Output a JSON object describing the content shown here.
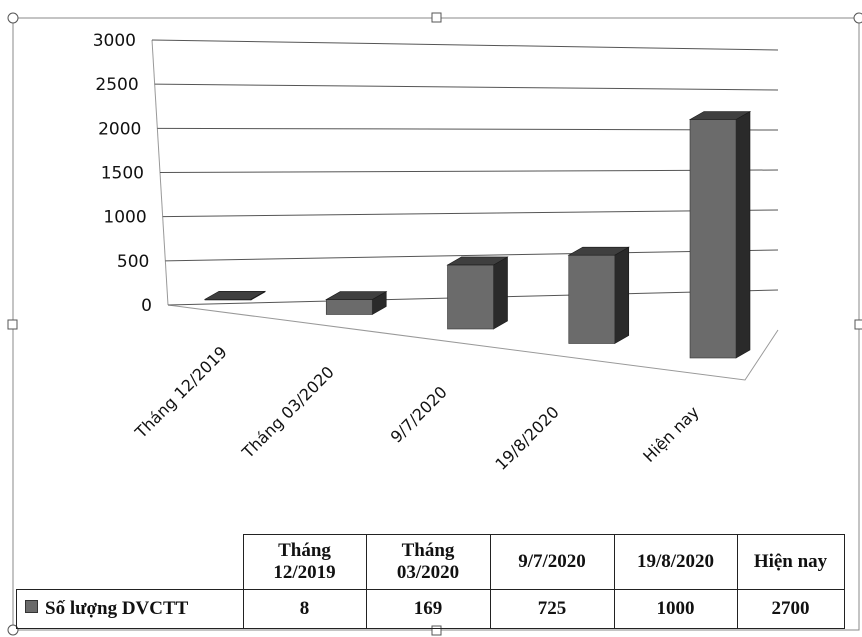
{
  "chart_data": {
    "type": "bar",
    "categories": [
      "Tháng 12/2019",
      "Tháng 03/2020",
      "9/7/2020",
      "19/8/2020",
      "Hiện nay"
    ],
    "table_headers": [
      [
        "Tháng",
        "12/2019"
      ],
      [
        "Tháng",
        "03/2020"
      ],
      [
        "9/7/2020"
      ],
      [
        "19/8/2020"
      ],
      [
        "Hiện nay"
      ]
    ],
    "series": [
      {
        "name": "Số lượng DVCTT",
        "values": [
          8,
          169,
          725,
          1000,
          2700
        ]
      }
    ],
    "value_labels": [
      "8",
      "169",
      "725",
      "1000",
      "2700"
    ],
    "ylim": [
      0,
      3000
    ],
    "yticks": [
      "0",
      "500",
      "1000",
      "1500",
      "2000",
      "2500",
      "3000"
    ],
    "grid": true,
    "style": "3d-column",
    "colors": {
      "bar_front": "#6b6b6b",
      "bar_top": "#3f3f3f",
      "bar_side": "#2a2a2a"
    }
  }
}
